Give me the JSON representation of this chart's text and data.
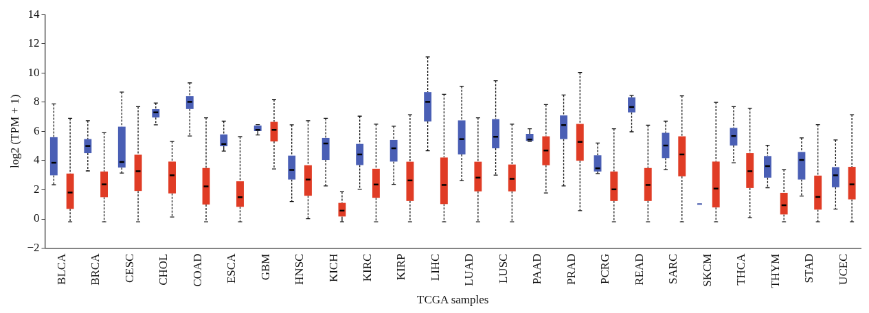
{
  "chart_data": {
    "type": "box",
    "xlabel": "TCGA samples",
    "ylabel": "log2 (TPM + 1)",
    "categories": [
      "BLCA",
      "BRCA",
      "CESC",
      "CHOL",
      "COAD",
      "ESCA",
      "GBM",
      "HNSC",
      "KICH",
      "KIRC",
      "KIRP",
      "LIHC",
      "LUAD",
      "LUSC",
      "PAAD",
      "PRAD",
      "PCRG",
      "READ",
      "SARC",
      "SKCM",
      "THCA",
      "THYM",
      "STAD",
      "UCEC"
    ],
    "ylim": [
      -2,
      14
    ],
    "yticks": [
      {
        "value": -2,
        "label": "−2"
      },
      0,
      2,
      4,
      6,
      8,
      10,
      12,
      14
    ],
    "grid": false,
    "legend": false,
    "series": [
      {
        "color": "#4a5fb5",
        "boxes": [
          {
            "low": 2.34,
            "q1": 2.99,
            "median": 3.85,
            "q3": 5.6,
            "high": 7.88
          },
          {
            "low": 3.29,
            "q1": 4.51,
            "median": 5.0,
            "q3": 5.47,
            "high": 6.73
          },
          {
            "low": 3.14,
            "q1": 3.52,
            "median": 3.9,
            "q3": 6.32,
            "high": 8.69
          },
          {
            "low": 6.45,
            "q1": 6.95,
            "median": 7.3,
            "q3": 7.52,
            "high": 7.94
          },
          {
            "low": 5.68,
            "q1": 7.53,
            "median": 8.02,
            "q3": 8.41,
            "high": 9.32
          },
          {
            "low": 4.65,
            "q1": 4.98,
            "median": 5.13,
            "q3": 5.79,
            "high": 6.7
          },
          {
            "low": 5.75,
            "q1": 6.02,
            "median": 6.1,
            "q3": 6.4,
            "high": 6.46
          },
          {
            "low": 1.19,
            "q1": 2.7,
            "median": 3.36,
            "q3": 4.34,
            "high": 6.45
          },
          {
            "low": 2.26,
            "q1": 4.04,
            "median": 5.17,
            "q3": 5.55,
            "high": 6.89
          },
          {
            "low": 2.04,
            "q1": 3.69,
            "median": 4.42,
            "q3": 5.14,
            "high": 7.04
          },
          {
            "low": 2.37,
            "q1": 3.93,
            "median": 4.84,
            "q3": 5.41,
            "high": 6.35
          },
          {
            "low": 4.67,
            "q1": 6.68,
            "median": 8.02,
            "q3": 8.69,
            "high": 11.1
          },
          {
            "low": 2.63,
            "q1": 4.42,
            "median": 5.47,
            "q3": 6.75,
            "high": 9.09
          },
          {
            "low": 3.0,
            "q1": 4.84,
            "median": 5.63,
            "q3": 6.84,
            "high": 9.47
          },
          {
            "low": 5.31,
            "q1": 5.35,
            "median": 5.44,
            "q3": 5.83,
            "high": 6.18
          },
          {
            "low": 2.26,
            "q1": 5.47,
            "median": 6.43,
            "q3": 7.09,
            "high": 8.49
          },
          {
            "low": 3.11,
            "q1": 3.25,
            "median": 3.47,
            "q3": 4.36,
            "high": 5.2
          },
          {
            "low": 5.97,
            "q1": 7.3,
            "median": 7.67,
            "q3": 8.33,
            "high": 8.46
          },
          {
            "low": 3.38,
            "q1": 4.17,
            "median": 5.03,
            "q3": 5.9,
            "high": 6.7
          },
          {
            "low": 1.02,
            "q1": 1.02,
            "median": 1.02,
            "q3": 1.02,
            "high": 1.02
          },
          {
            "low": 3.85,
            "q1": 5.03,
            "median": 5.68,
            "q3": 6.24,
            "high": 7.69
          },
          {
            "low": 2.14,
            "q1": 2.83,
            "median": 3.62,
            "q3": 4.31,
            "high": 5.05
          },
          {
            "low": 1.57,
            "q1": 2.7,
            "median": 4.04,
            "q3": 4.59,
            "high": 5.55
          },
          {
            "low": 0.68,
            "q1": 2.17,
            "median": 2.99,
            "q3": 3.55,
            "high": 5.41
          }
        ]
      },
      {
        "color": "#e03c25",
        "boxes": [
          {
            "low": -0.19,
            "q1": 0.69,
            "median": 1.81,
            "q3": 3.11,
            "high": 6.89
          },
          {
            "low": -0.19,
            "q1": 1.49,
            "median": 2.37,
            "q3": 3.25,
            "high": 5.91
          },
          {
            "low": -0.19,
            "q1": 1.92,
            "median": 3.27,
            "q3": 4.4,
            "high": 7.69
          },
          {
            "low": 0.14,
            "q1": 1.75,
            "median": 2.99,
            "q3": 3.93,
            "high": 5.31
          },
          {
            "low": -0.19,
            "q1": 0.99,
            "median": 2.23,
            "q3": 3.49,
            "high": 6.93
          },
          {
            "low": -0.19,
            "q1": 0.83,
            "median": 1.49,
            "q3": 2.58,
            "high": 5.63
          },
          {
            "low": 3.43,
            "q1": 5.31,
            "median": 6.1,
            "q3": 6.65,
            "high": 8.18
          },
          {
            "low": 0.02,
            "q1": 1.59,
            "median": 2.7,
            "q3": 3.68,
            "high": 6.73
          },
          {
            "low": -0.19,
            "q1": 0.17,
            "median": 0.57,
            "q3": 1.1,
            "high": 1.86
          },
          {
            "low": -0.19,
            "q1": 1.45,
            "median": 2.36,
            "q3": 3.44,
            "high": 6.49
          },
          {
            "low": -0.19,
            "q1": 1.23,
            "median": 2.64,
            "q3": 3.92,
            "high": 7.14
          },
          {
            "low": -0.19,
            "q1": 1.02,
            "median": 2.33,
            "q3": 4.21,
            "high": 8.54
          },
          {
            "low": -0.19,
            "q1": 1.89,
            "median": 2.83,
            "q3": 3.92,
            "high": 6.93
          },
          {
            "low": -0.19,
            "q1": 1.89,
            "median": 2.75,
            "q3": 3.73,
            "high": 6.49
          },
          {
            "low": 1.78,
            "q1": 3.68,
            "median": 4.69,
            "q3": 5.66,
            "high": 7.83
          },
          {
            "low": 0.57,
            "q1": 3.99,
            "median": 5.28,
            "q3": 6.51,
            "high": 10.03
          },
          {
            "low": -0.19,
            "q1": 1.23,
            "median": 2.03,
            "q3": 3.25,
            "high": 6.18
          },
          {
            "low": -0.19,
            "q1": 1.23,
            "median": 2.33,
            "q3": 3.49,
            "high": 6.42
          },
          {
            "low": -0.19,
            "q1": 2.92,
            "median": 4.42,
            "q3": 5.66,
            "high": 8.43
          },
          {
            "low": -0.19,
            "q1": 0.79,
            "median": 2.08,
            "q3": 3.93,
            "high": 7.99
          },
          {
            "low": 0.09,
            "q1": 2.12,
            "median": 3.27,
            "q3": 4.51,
            "high": 7.59
          },
          {
            "low": -0.19,
            "q1": 0.31,
            "median": 0.94,
            "q3": 1.79,
            "high": 3.38
          },
          {
            "low": -0.19,
            "q1": 0.64,
            "median": 1.51,
            "q3": 2.97,
            "high": 6.46
          },
          {
            "low": -0.19,
            "q1": 1.34,
            "median": 2.37,
            "q3": 3.57,
            "high": 7.14
          }
        ]
      }
    ]
  }
}
